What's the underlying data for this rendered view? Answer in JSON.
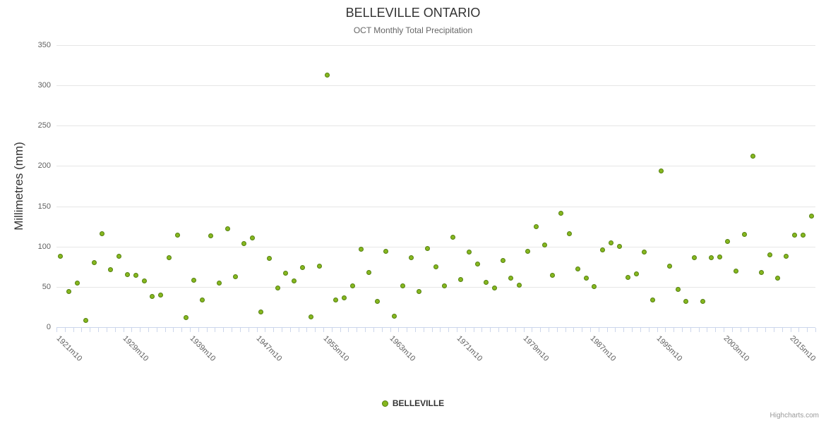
{
  "credit": "Highcharts.com",
  "chart_data": {
    "type": "scatter",
    "title": "BELLEVILLE ONTARIO",
    "subtitle": "OCT Monthly Total Precipitation",
    "ylabel": "Millimetres (mm)",
    "ylim": [
      0,
      350
    ],
    "ytick_interval": 50,
    "yticks": [
      0,
      50,
      100,
      150,
      200,
      250,
      300,
      350
    ],
    "grid": true,
    "legend_position": "bottom",
    "series_name": "BELLEVILLE",
    "x_tick_labels": [
      "1921m10",
      "1929m10",
      "1939m10",
      "1947m10",
      "1955m10",
      "1963m10",
      "1971m10",
      "1979m10",
      "1987m10",
      "1995m10",
      "2003m10",
      "2015m10"
    ],
    "x_tick_indices": [
      0,
      8,
      16,
      24,
      32,
      40,
      48,
      56,
      64,
      72,
      80,
      88
    ],
    "n_points": 91,
    "values": [
      88,
      44,
      55,
      8,
      80,
      116,
      71,
      88,
      65,
      64,
      57,
      38,
      40,
      86,
      114,
      12,
      58,
      34,
      113,
      55,
      122,
      63,
      104,
      111,
      19,
      85,
      49,
      67,
      57,
      74,
      13,
      76,
      313,
      34,
      36,
      51,
      97,
      68,
      32,
      94,
      14,
      51,
      86,
      44,
      98,
      75,
      51,
      112,
      59,
      93,
      78,
      56,
      49,
      83,
      61,
      52,
      94,
      125,
      102,
      64,
      141,
      116,
      72,
      61,
      50,
      96,
      105,
      100,
      62,
      66,
      93,
      34,
      194,
      76,
      47,
      32,
      86,
      32,
      86,
      87,
      106,
      70,
      115,
      212,
      68,
      90,
      61,
      88,
      114,
      114,
      138
    ]
  },
  "colors": {
    "marker_fill": "#86b71f",
    "marker_border": "#54800f",
    "gridline": "#e6e6e6",
    "axis_line": "#ccd6eb",
    "title_text": "#333333",
    "subtitle_text": "#666666",
    "tick_label_text": "#606060",
    "credit_text": "#999999"
  }
}
